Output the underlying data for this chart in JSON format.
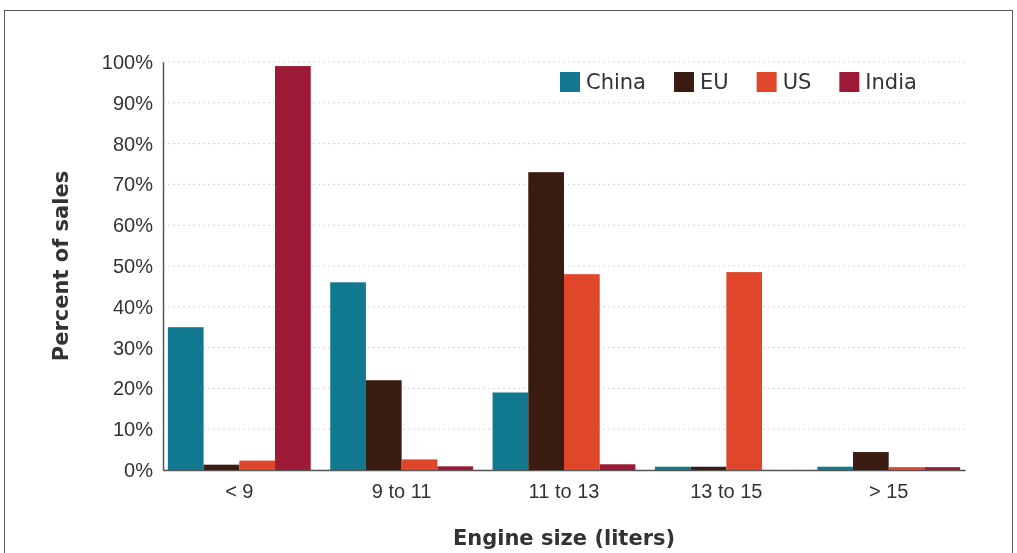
{
  "chart_data": {
    "type": "bar",
    "xlabel": "Engine size (liters)",
    "ylabel": "Percent of sales",
    "categories": [
      "< 9",
      "9 to 11",
      "11 to 13",
      "13 to 15",
      "> 15"
    ],
    "series": [
      {
        "name": "China",
        "color": "#10798f",
        "values": [
          35,
          46,
          19,
          0.8,
          0.8
        ]
      },
      {
        "name": "EU",
        "color": "#3a1c12",
        "values": [
          1.3,
          22,
          73,
          0.8,
          4.4
        ]
      },
      {
        "name": "US",
        "color": "#e0462a",
        "values": [
          2.3,
          2.6,
          48,
          48.5,
          0.7
        ]
      },
      {
        "name": "India",
        "color": "#9c1a36",
        "values": [
          99,
          0.9,
          1.4,
          0,
          0.7
        ]
      }
    ],
    "ylim": [
      0,
      100
    ],
    "yticks": [
      {
        "value": 0,
        "label": "0%"
      },
      {
        "value": 10,
        "label": "10%"
      },
      {
        "value": 20,
        "label": "20%"
      },
      {
        "value": 30,
        "label": "30%"
      },
      {
        "value": 40,
        "label": "40%"
      },
      {
        "value": 50,
        "label": "50%"
      },
      {
        "value": 60,
        "label": "60%"
      },
      {
        "value": 70,
        "label": "70%"
      },
      {
        "value": 80,
        "label": "80%"
      },
      {
        "value": 90,
        "label": "90%"
      },
      {
        "value": 100,
        "label": "100%"
      }
    ],
    "grid": "y",
    "legend": "top right"
  }
}
